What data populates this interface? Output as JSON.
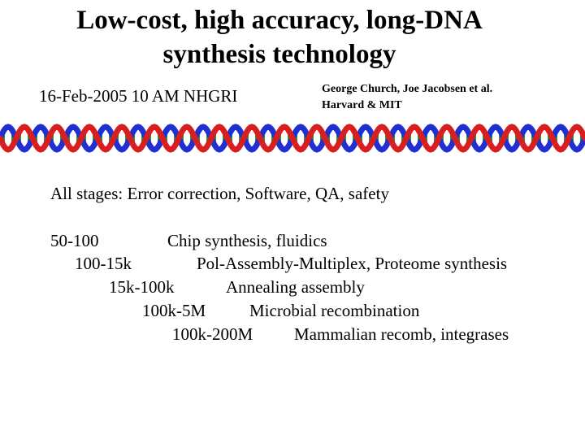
{
  "slide": {
    "title_line1": "Low-cost, high accuracy, long-DNA",
    "title_line2": "synthesis technology",
    "date": "16-Feb-2005 10 AM NHGRI",
    "authors_line1": "George Church,  Joe Jacobsen et al.",
    "authors_line2": "Harvard & MIT",
    "helix_colors": {
      "strand_a": "#d81e1e",
      "strand_b": "#1f2fd0",
      "rungs": "#2a8a3a"
    },
    "stages": "All stages: Error correction, Software, QA, safety",
    "rows": [
      {
        "size": "50-100",
        "description": "Chip synthesis, fluidics"
      },
      {
        "size": "100-15k",
        "description": "Pol-Assembly-Multiplex, Proteome synthesis"
      },
      {
        "size": "15k-100k",
        "description": "Annealing assembly"
      },
      {
        "size": "100k-5M",
        "description": "Microbial recombination"
      },
      {
        "size": "100k-200M",
        "description": "Mammalian recomb, integrases"
      }
    ]
  }
}
